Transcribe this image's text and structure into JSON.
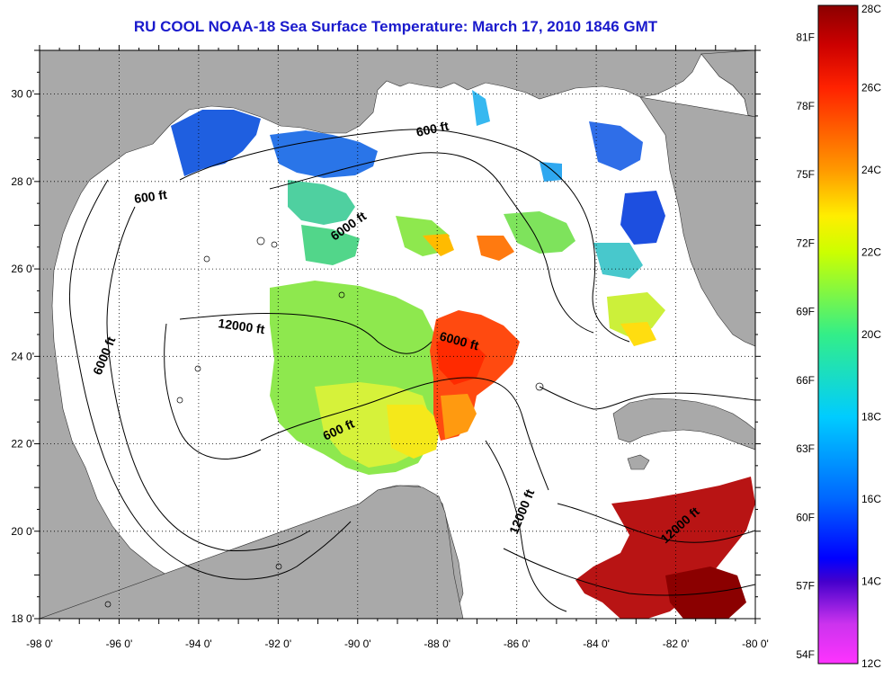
{
  "title": "RU COOL  NOAA-18  Sea Surface Temperature:  March 17, 2010 1846 GMT",
  "map": {
    "lon_range": [
      -98,
      -80
    ],
    "lat_range": [
      18,
      31
    ],
    "x_ticks": [
      "-98 0'",
      "-96 0'",
      "-94 0'",
      "-92 0'",
      "-90 0'",
      "-88 0'",
      "-86 0'",
      "-84 0'",
      "-82 0'",
      "-80 0'"
    ],
    "y_ticks": [
      "18 0'",
      "20 0'",
      "22 0'",
      "24 0'",
      "26 0'",
      "28 0'",
      "30 0'"
    ],
    "grid": "dotted",
    "land_color": "#a9a9a9",
    "no_data_color": "#ffffff"
  },
  "contour_labels": [
    {
      "id": "600-ft-north",
      "text": "600 ft"
    },
    {
      "id": "600-ft-west",
      "text": "600 ft"
    },
    {
      "id": "6000-ft-north",
      "text": "6000 ft"
    },
    {
      "id": "12000-ft-west",
      "text": "12000 ft"
    },
    {
      "id": "6000-ft-west",
      "text": "6000 ft"
    },
    {
      "id": "6000-ft-central",
      "text": "6000 ft"
    },
    {
      "id": "600-ft-yucatan",
      "text": "600 ft"
    },
    {
      "id": "12000-ft-yucatan",
      "text": "12000 ft"
    },
    {
      "id": "12000-ft-caribbean",
      "text": "12000 ft"
    }
  ],
  "colorbar": {
    "celsius_labels": [
      "28C",
      "26C",
      "24C",
      "22C",
      "20C",
      "18C",
      "16C",
      "14C",
      "12C"
    ],
    "fahrenheit_labels": [
      "81F",
      "78F",
      "75F",
      "72F",
      "69F",
      "66F",
      "63F",
      "60F",
      "57F",
      "54F"
    ],
    "range_c": [
      12,
      28
    ]
  }
}
